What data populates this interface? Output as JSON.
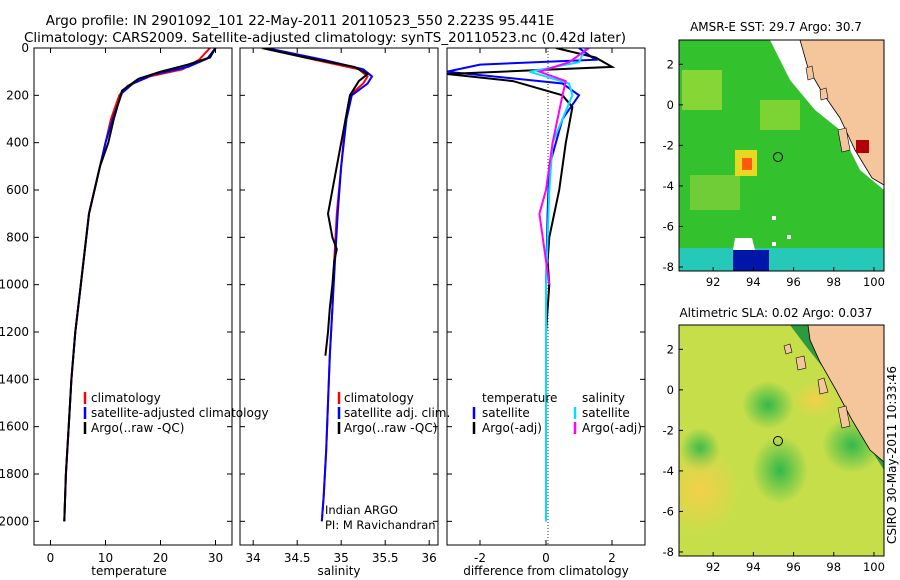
{
  "title_line1": "Argo profile: IN 2901092_101 22-May-2011 20110523_550 2.223S 95.441E",
  "title_line2": "Climatology: CARS2009. Satellite-adjusted climatology: synTS_20110523.nc (0.42d later)",
  "side_label": "CSIRO 30-May-2011 10:33:46",
  "colors": {
    "climatology": "#ff0000",
    "satellite": "#0000ff",
    "argo": "#000000",
    "sal_satellite": "#00e0ff",
    "sal_argo": "#ff00ff"
  },
  "chart_data": [
    {
      "type": "line",
      "xlabel": "temperature",
      "xlim": [
        -3,
        33
      ],
      "ylim": [
        2100,
        0
      ],
      "xticks": [
        0,
        10,
        20,
        30
      ],
      "yticks": [
        0,
        200,
        400,
        600,
        800,
        1000,
        1200,
        1400,
        1600,
        1800,
        2000
      ],
      "legend": [
        "climatology",
        "satellite-adjusted climatology",
        "Argo(..raw -QC)"
      ],
      "series": [
        {
          "name": "climatology",
          "color": "red",
          "x": [
            29,
            27,
            24,
            18,
            14,
            12.5,
            11,
            10,
            9,
            8,
            7,
            5.5,
            4.5,
            3.8,
            3.3,
            2.8,
            2.5
          ],
          "y": [
            0,
            50,
            90,
            120,
            160,
            200,
            300,
            400,
            500,
            600,
            700,
            1000,
            1200,
            1400,
            1600,
            1800,
            2000
          ]
        },
        {
          "name": "satellite-adjusted climatology",
          "color": "blue",
          "x": [
            30,
            28.5,
            25,
            19,
            15,
            13,
            11.3,
            10,
            9,
            8,
            7,
            5.5,
            4.5,
            3.8,
            3.3,
            2.8,
            2.5
          ],
          "y": [
            0,
            45,
            80,
            110,
            150,
            190,
            300,
            400,
            500,
            600,
            700,
            1000,
            1200,
            1400,
            1600,
            1800,
            2000
          ]
        },
        {
          "name": "Argo(..raw -QC)",
          "color": "black",
          "x": [
            30,
            29,
            25,
            20,
            16,
            13,
            11.5,
            10.5,
            9,
            8,
            7,
            5.5,
            4.5,
            3.8,
            3.3,
            2.8,
            2.5
          ],
          "y": [
            0,
            40,
            70,
            100,
            130,
            180,
            300,
            400,
            500,
            600,
            700,
            1000,
            1200,
            1400,
            1600,
            1800,
            2000
          ]
        }
      ]
    },
    {
      "type": "line",
      "xlabel": "salinity",
      "xlim": [
        33.85,
        36.1
      ],
      "ylim": [
        2100,
        0
      ],
      "xticks": [
        34,
        34.5,
        35,
        35.5,
        36
      ],
      "legend": [
        "climatology",
        "satellite adj. clim.",
        "Argo(..raw -QC)"
      ],
      "annotation": [
        "Indian ARGO",
        "PI: M Ravichandran"
      ],
      "series": [
        {
          "name": "climatology",
          "color": "red",
          "x": [
            34.1,
            34.7,
            35.2,
            35.3,
            35.25,
            35.1,
            35.05,
            35.0,
            34.95,
            34.92,
            34.9,
            34.87,
            34.85,
            34.83,
            34.8,
            34.78
          ],
          "y": [
            0,
            50,
            90,
            120,
            150,
            200,
            300,
            500,
            700,
            900,
            1100,
            1300,
            1500,
            1700,
            1900,
            2000
          ]
        },
        {
          "name": "satellite adj. clim.",
          "color": "blue",
          "x": [
            34.15,
            34.8,
            35.25,
            35.35,
            35.3,
            35.12,
            35.06,
            35.0,
            34.96,
            34.93,
            34.9,
            34.87,
            34.85,
            34.83,
            34.8,
            34.78
          ],
          "y": [
            0,
            50,
            90,
            120,
            150,
            200,
            300,
            500,
            700,
            900,
            1100,
            1300,
            1500,
            1700,
            1900,
            2000
          ]
        },
        {
          "name": "Argo(..raw -QC)",
          "color": "black",
          "x": [
            34.1,
            34.6,
            35.15,
            35.3,
            35.2,
            35.1,
            35.05,
            34.95,
            34.85,
            34.9,
            34.95,
            34.92,
            34.9,
            34.87,
            34.85,
            34.82
          ],
          "y": [
            0,
            40,
            80,
            110,
            140,
            200,
            300,
            500,
            700,
            800,
            850,
            900,
            1000,
            1100,
            1200,
            1300
          ]
        }
      ]
    },
    {
      "type": "line",
      "xlabel": "difference from climatology",
      "xlim": [
        -3,
        3
      ],
      "ylim": [
        2100,
        0
      ],
      "xticks": [
        -2,
        0,
        2
      ],
      "legend_temperature": [
        "temperature",
        "satellite",
        "Argo(-adj)"
      ],
      "legend_salinity": [
        "salinity",
        "satellite",
        "Argo(-adj)"
      ],
      "series": [
        {
          "name": "temperature satellite",
          "color": "blue",
          "x": [
            1,
            1.5,
            -2,
            -3,
            0.5,
            1,
            0.5,
            0.1,
            0.05,
            0,
            0
          ],
          "y": [
            0,
            50,
            70,
            100,
            150,
            200,
            300,
            500,
            700,
            1000,
            2000
          ]
        },
        {
          "name": "temperature Argo(-adj)",
          "color": "black",
          "x": [
            0.3,
            1.5,
            2,
            -3,
            -1,
            0.5,
            0.8,
            0.6,
            0.4,
            0.1,
            0.05,
            0.1,
            0
          ],
          "y": [
            0,
            40,
            80,
            110,
            140,
            200,
            250,
            400,
            600,
            800,
            900,
            1000,
            1200
          ]
        },
        {
          "name": "salinity satellite",
          "color": "cyan",
          "x": [
            1.2,
            1,
            -0.5,
            0.7,
            0.8,
            0.2,
            0.1,
            0,
            0
          ],
          "y": [
            0,
            60,
            100,
            150,
            200,
            400,
            600,
            1000,
            2000
          ]
        },
        {
          "name": "salinity Argo(-adj)",
          "color": "magenta",
          "x": [
            1.3,
            0.7,
            -0.2,
            0.6,
            0.5,
            0.2,
            0,
            -0.2,
            0,
            0.1
          ],
          "y": [
            0,
            60,
            100,
            140,
            200,
            400,
            600,
            700,
            900,
            1000
          ]
        }
      ]
    },
    {
      "type": "heatmap",
      "title": "AMSR-E SST: 29.7 Argo: 30.7",
      "xlim": [
        90.3,
        100.5
      ],
      "ylim": [
        -8.2,
        3.2
      ],
      "xticks": [
        92,
        94,
        96,
        98,
        100
      ],
      "yticks": [
        2,
        0,
        -2,
        -4,
        -6,
        -8
      ]
    },
    {
      "type": "heatmap",
      "title": "Altimetric SLA: 0.02 Argo: 0.037",
      "xlim": [
        90.3,
        100.5
      ],
      "ylim": [
        -8.2,
        3.2
      ],
      "xticks": [
        92,
        94,
        96,
        98,
        100
      ],
      "yticks": [
        2,
        0,
        -2,
        -4,
        -6,
        -8
      ]
    }
  ]
}
